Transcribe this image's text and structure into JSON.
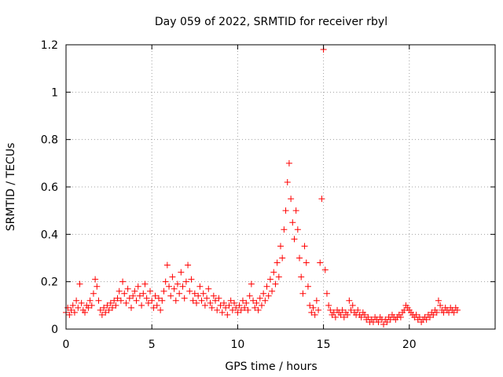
{
  "chart_data": {
    "type": "scatter",
    "title": "Day 059 of 2022, SRMTID for receiver rbyl",
    "xlabel": "GPS time / hours",
    "ylabel": "SRMTID / TECUs",
    "xlim": [
      0,
      25
    ],
    "ylim": [
      0,
      1.2
    ],
    "x_ticks": [
      0,
      5,
      10,
      15,
      20
    ],
    "x_tick_labels": [
      "0",
      "5",
      "10",
      "15",
      "20"
    ],
    "y_ticks": [
      0,
      0.2,
      0.4,
      0.6,
      0.8,
      1,
      1.2
    ],
    "y_tick_labels": [
      "0",
      "0.2",
      "0.4",
      "0.6",
      "0.8",
      "1",
      "1.2"
    ],
    "grid": true,
    "marker": "plus",
    "series": [
      {
        "name": "SRMTID",
        "color": "#ff0000",
        "points": [
          [
            0.0,
            0.07
          ],
          [
            0.1,
            0.09
          ],
          [
            0.2,
            0.06
          ],
          [
            0.3,
            0.08
          ],
          [
            0.4,
            0.1
          ],
          [
            0.5,
            0.07
          ],
          [
            0.6,
            0.12
          ],
          [
            0.7,
            0.09
          ],
          [
            0.8,
            0.19
          ],
          [
            0.9,
            0.11
          ],
          [
            1.0,
            0.08
          ],
          [
            1.1,
            0.07
          ],
          [
            1.2,
            0.1
          ],
          [
            1.3,
            0.09
          ],
          [
            1.4,
            0.12
          ],
          [
            1.5,
            0.1
          ],
          [
            1.6,
            0.15
          ],
          [
            1.7,
            0.21
          ],
          [
            1.8,
            0.18
          ],
          [
            1.9,
            0.12
          ],
          [
            2.0,
            0.08
          ],
          [
            2.1,
            0.06
          ],
          [
            2.2,
            0.09
          ],
          [
            2.3,
            0.07
          ],
          [
            2.4,
            0.1
          ],
          [
            2.5,
            0.08
          ],
          [
            2.6,
            0.11
          ],
          [
            2.7,
            0.09
          ],
          [
            2.8,
            0.12
          ],
          [
            2.9,
            0.1
          ],
          [
            3.0,
            0.13
          ],
          [
            3.1,
            0.16
          ],
          [
            3.2,
            0.12
          ],
          [
            3.3,
            0.2
          ],
          [
            3.4,
            0.15
          ],
          [
            3.5,
            0.11
          ],
          [
            3.6,
            0.17
          ],
          [
            3.7,
            0.13
          ],
          [
            3.8,
            0.09
          ],
          [
            3.9,
            0.14
          ],
          [
            4.0,
            0.16
          ],
          [
            4.1,
            0.12
          ],
          [
            4.2,
            0.18
          ],
          [
            4.3,
            0.14
          ],
          [
            4.4,
            0.1
          ],
          [
            4.5,
            0.15
          ],
          [
            4.6,
            0.19
          ],
          [
            4.7,
            0.13
          ],
          [
            4.8,
            0.11
          ],
          [
            4.9,
            0.16
          ],
          [
            5.0,
            0.12
          ],
          [
            5.1,
            0.09
          ],
          [
            5.2,
            0.14
          ],
          [
            5.3,
            0.1
          ],
          [
            5.4,
            0.13
          ],
          [
            5.5,
            0.08
          ],
          [
            5.6,
            0.12
          ],
          [
            5.7,
            0.16
          ],
          [
            5.8,
            0.2
          ],
          [
            5.9,
            0.27
          ],
          [
            6.0,
            0.18
          ],
          [
            6.1,
            0.14
          ],
          [
            6.2,
            0.22
          ],
          [
            6.3,
            0.17
          ],
          [
            6.4,
            0.12
          ],
          [
            6.5,
            0.19
          ],
          [
            6.6,
            0.15
          ],
          [
            6.7,
            0.24
          ],
          [
            6.8,
            0.18
          ],
          [
            6.9,
            0.13
          ],
          [
            7.0,
            0.2
          ],
          [
            7.1,
            0.27
          ],
          [
            7.2,
            0.16
          ],
          [
            7.3,
            0.21
          ],
          [
            7.4,
            0.12
          ],
          [
            7.5,
            0.15
          ],
          [
            7.6,
            0.11
          ],
          [
            7.7,
            0.14
          ],
          [
            7.8,
            0.18
          ],
          [
            7.9,
            0.12
          ],
          [
            8.0,
            0.15
          ],
          [
            8.1,
            0.1
          ],
          [
            8.2,
            0.13
          ],
          [
            8.3,
            0.17
          ],
          [
            8.4,
            0.11
          ],
          [
            8.5,
            0.09
          ],
          [
            8.6,
            0.14
          ],
          [
            8.7,
            0.12
          ],
          [
            8.8,
            0.08
          ],
          [
            8.9,
            0.13
          ],
          [
            9.0,
            0.1
          ],
          [
            9.1,
            0.07
          ],
          [
            9.2,
            0.11
          ],
          [
            9.3,
            0.09
          ],
          [
            9.4,
            0.06
          ],
          [
            9.5,
            0.1
          ],
          [
            9.6,
            0.12
          ],
          [
            9.7,
            0.08
          ],
          [
            9.8,
            0.11
          ],
          [
            9.9,
            0.09
          ],
          [
            10.0,
            0.07
          ],
          [
            10.1,
            0.1
          ],
          [
            10.2,
            0.08
          ],
          [
            10.3,
            0.12
          ],
          [
            10.4,
            0.09
          ],
          [
            10.5,
            0.11
          ],
          [
            10.6,
            0.08
          ],
          [
            10.7,
            0.14
          ],
          [
            10.8,
            0.19
          ],
          [
            10.9,
            0.12
          ],
          [
            11.0,
            0.09
          ],
          [
            11.1,
            0.11
          ],
          [
            11.2,
            0.08
          ],
          [
            11.3,
            0.13
          ],
          [
            11.4,
            0.1
          ],
          [
            11.5,
            0.15
          ],
          [
            11.6,
            0.12
          ],
          [
            11.7,
            0.18
          ],
          [
            11.8,
            0.14
          ],
          [
            11.9,
            0.21
          ],
          [
            12.0,
            0.16
          ],
          [
            12.1,
            0.24
          ],
          [
            12.2,
            0.19
          ],
          [
            12.3,
            0.28
          ],
          [
            12.4,
            0.22
          ],
          [
            12.5,
            0.35
          ],
          [
            12.6,
            0.3
          ],
          [
            12.7,
            0.42
          ],
          [
            12.8,
            0.5
          ],
          [
            12.9,
            0.62
          ],
          [
            13.0,
            0.7
          ],
          [
            13.1,
            0.55
          ],
          [
            13.2,
            0.45
          ],
          [
            13.3,
            0.38
          ],
          [
            13.4,
            0.5
          ],
          [
            13.5,
            0.42
          ],
          [
            13.6,
            0.3
          ],
          [
            13.7,
            0.22
          ],
          [
            13.8,
            0.15
          ],
          [
            13.9,
            0.35
          ],
          [
            14.0,
            0.28
          ],
          [
            14.1,
            0.18
          ],
          [
            14.2,
            0.1
          ],
          [
            14.3,
            0.07
          ],
          [
            14.4,
            0.09
          ],
          [
            14.5,
            0.06
          ],
          [
            14.6,
            0.12
          ],
          [
            14.7,
            0.08
          ],
          [
            14.8,
            0.28
          ],
          [
            14.9,
            0.55
          ],
          [
            15.0,
            1.18
          ],
          [
            15.1,
            0.25
          ],
          [
            15.2,
            0.15
          ],
          [
            15.3,
            0.1
          ],
          [
            15.4,
            0.08
          ],
          [
            15.5,
            0.06
          ],
          [
            15.6,
            0.07
          ],
          [
            15.7,
            0.05
          ],
          [
            15.8,
            0.08
          ],
          [
            15.9,
            0.07
          ],
          [
            16.0,
            0.06
          ],
          [
            16.1,
            0.08
          ],
          [
            16.2,
            0.05
          ],
          [
            16.3,
            0.07
          ],
          [
            16.4,
            0.06
          ],
          [
            16.5,
            0.12
          ],
          [
            16.6,
            0.08
          ],
          [
            16.7,
            0.1
          ],
          [
            16.8,
            0.07
          ],
          [
            16.9,
            0.06
          ],
          [
            17.0,
            0.08
          ],
          [
            17.1,
            0.06
          ],
          [
            17.2,
            0.05
          ],
          [
            17.3,
            0.07
          ],
          [
            17.4,
            0.06
          ],
          [
            17.5,
            0.04
          ],
          [
            17.6,
            0.05
          ],
          [
            17.7,
            0.03
          ],
          [
            17.8,
            0.04
          ],
          [
            17.9,
            0.03
          ],
          [
            18.0,
            0.05
          ],
          [
            18.1,
            0.04
          ],
          [
            18.2,
            0.03
          ],
          [
            18.3,
            0.05
          ],
          [
            18.4,
            0.04
          ],
          [
            18.5,
            0.02
          ],
          [
            18.6,
            0.04
          ],
          [
            18.7,
            0.03
          ],
          [
            18.8,
            0.05
          ],
          [
            18.9,
            0.04
          ],
          [
            19.0,
            0.06
          ],
          [
            19.1,
            0.05
          ],
          [
            19.2,
            0.04
          ],
          [
            19.3,
            0.05
          ],
          [
            19.4,
            0.06
          ],
          [
            19.5,
            0.05
          ],
          [
            19.6,
            0.07
          ],
          [
            19.7,
            0.08
          ],
          [
            19.8,
            0.1
          ],
          [
            19.9,
            0.09
          ],
          [
            20.0,
            0.08
          ],
          [
            20.1,
            0.07
          ],
          [
            20.2,
            0.06
          ],
          [
            20.3,
            0.05
          ],
          [
            20.4,
            0.06
          ],
          [
            20.5,
            0.04
          ],
          [
            20.6,
            0.05
          ],
          [
            20.7,
            0.03
          ],
          [
            20.8,
            0.04
          ],
          [
            20.9,
            0.05
          ],
          [
            21.0,
            0.04
          ],
          [
            21.1,
            0.06
          ],
          [
            21.2,
            0.05
          ],
          [
            21.3,
            0.07
          ],
          [
            21.4,
            0.06
          ],
          [
            21.5,
            0.08
          ],
          [
            21.6,
            0.07
          ],
          [
            21.7,
            0.12
          ],
          [
            21.8,
            0.1
          ],
          [
            21.9,
            0.08
          ],
          [
            22.0,
            0.07
          ],
          [
            22.1,
            0.09
          ],
          [
            22.2,
            0.08
          ],
          [
            22.3,
            0.07
          ],
          [
            22.4,
            0.09
          ],
          [
            22.5,
            0.08
          ],
          [
            22.6,
            0.07
          ],
          [
            22.7,
            0.09
          ],
          [
            22.8,
            0.08
          ]
        ]
      }
    ]
  }
}
